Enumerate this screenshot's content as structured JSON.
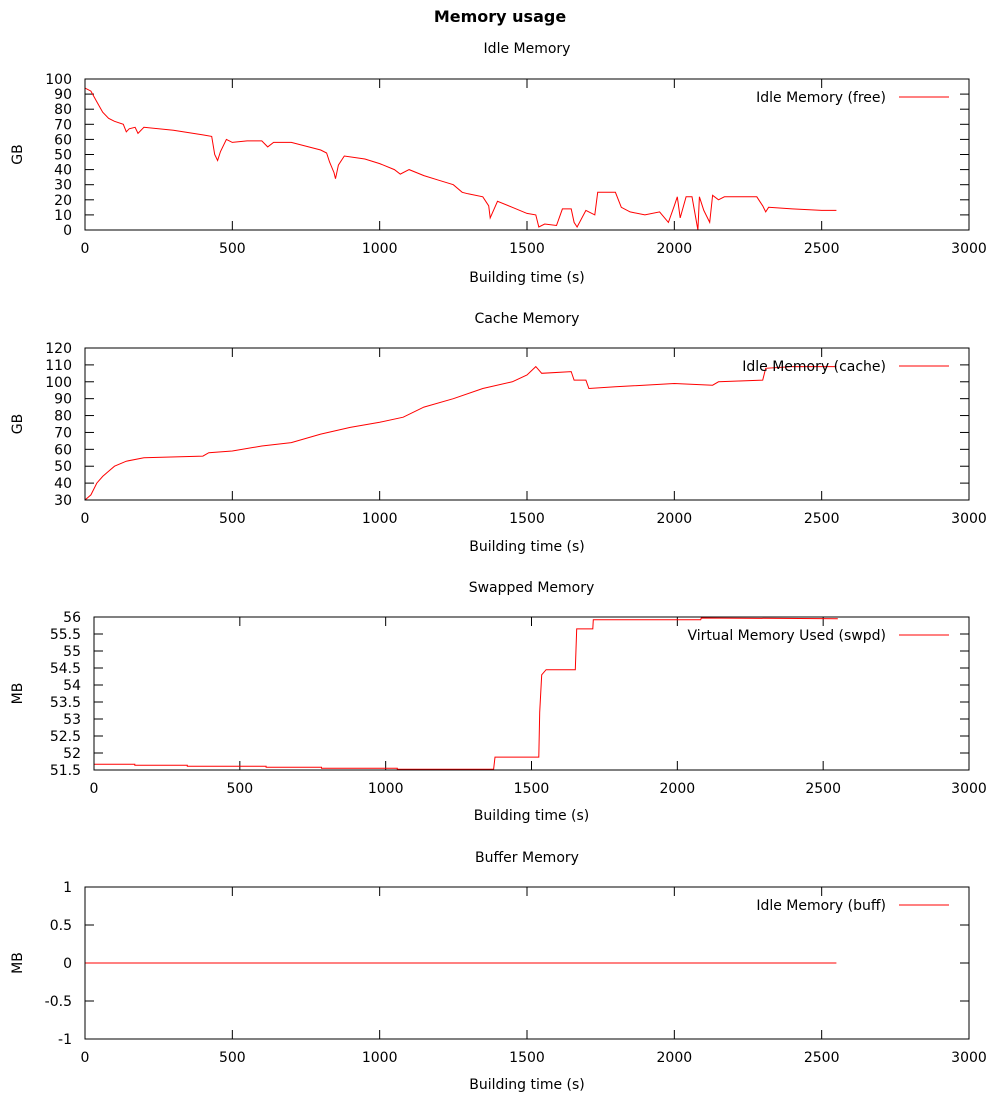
{
  "chart_data": {
    "title": "Memory usage",
    "charts": [
      {
        "type": "line",
        "title": "Idle Memory",
        "xlabel": "Building time (s)",
        "ylabel": "GB",
        "xlim": [
          0,
          3000
        ],
        "ylim": [
          0,
          100
        ],
        "xticks": [
          0,
          500,
          1000,
          1500,
          2000,
          2500,
          3000
        ],
        "yticks": [
          0,
          10,
          20,
          30,
          40,
          50,
          60,
          70,
          80,
          90,
          100
        ],
        "legend": "top-right",
        "series": [
          {
            "name": "Idle Memory (free)",
            "color": "#ff0000",
            "x": [
              0,
              20,
              40,
              60,
              80,
              100,
              130,
              140,
              150,
              170,
              180,
              200,
              300,
              400,
              430,
              440,
              450,
              460,
              480,
              500,
              550,
              600,
              620,
              640,
              700,
              800,
              820,
              830,
              845,
              850,
              860,
              880,
              950,
              1000,
              1050,
              1070,
              1100,
              1150,
              1200,
              1250,
              1280,
              1300,
              1350,
              1370,
              1375,
              1400,
              1450,
              1500,
              1530,
              1540,
              1560,
              1600,
              1620,
              1650,
              1660,
              1670,
              1700,
              1730,
              1740,
              1800,
              1820,
              1850,
              1900,
              1950,
              1980,
              2000,
              2010,
              2020,
              2040,
              2060,
              2080,
              2085,
              2100,
              2120,
              2130,
              2150,
              2170,
              2280,
              2300,
              2310,
              2320,
              2400,
              2500,
              2550
            ],
            "y": [
              94,
              92,
              85,
              78,
              74,
              72,
              70,
              65,
              67,
              68,
              64,
              68,
              66,
              63,
              62,
              50,
              46,
              52,
              60,
              58,
              59,
              59,
              55,
              58,
              58,
              53,
              51,
              45,
              38,
              34,
              43,
              49,
              47,
              44,
              40,
              37,
              40,
              36,
              33,
              30,
              25,
              24,
              22,
              16,
              8,
              19,
              15,
              11,
              10,
              2,
              4,
              3,
              14,
              14,
              5,
              2,
              13,
              10,
              25,
              25,
              15,
              12,
              10,
              12,
              5,
              16,
              22,
              8,
              22,
              22,
              0,
              22,
              13,
              5,
              23,
              20,
              22,
              22,
              16,
              12,
              15,
              14,
              13,
              13
            ]
          }
        ]
      },
      {
        "type": "line",
        "title": "Cache Memory",
        "xlabel": "Building time (s)",
        "ylabel": "GB",
        "xlim": [
          0,
          3000
        ],
        "ylim": [
          30,
          120
        ],
        "xticks": [
          0,
          500,
          1000,
          1500,
          2000,
          2500,
          3000
        ],
        "yticks": [
          30,
          40,
          50,
          60,
          70,
          80,
          90,
          100,
          110,
          120
        ],
        "legend": "top-right",
        "series": [
          {
            "name": "Idle Memory (cache)",
            "color": "#ff0000",
            "x": [
              0,
              20,
              40,
              60,
              80,
              100,
              140,
              200,
              400,
              420,
              500,
              600,
              700,
              800,
              900,
              1000,
              1080,
              1150,
              1250,
              1350,
              1450,
              1500,
              1530,
              1550,
              1650,
              1660,
              1700,
              1710,
              1800,
              2000,
              2130,
              2150,
              2300,
              2310,
              2400,
              2550
            ],
            "y": [
              30,
              33,
              40,
              44,
              47,
              50,
              53,
              55,
              56,
              58,
              59,
              62,
              64,
              69,
              73,
              76,
              79,
              85,
              90,
              96,
              100,
              104,
              109,
              105,
              106,
              101,
              101,
              96,
              97,
              99,
              98,
              100,
              101,
              108,
              109,
              109
            ]
          }
        ]
      },
      {
        "type": "line",
        "title": "Swapped Memory",
        "xlabel": "Building time (s)",
        "ylabel": "MB",
        "xlim": [
          0,
          3000
        ],
        "ylim": [
          51.5,
          56
        ],
        "xticks": [
          0,
          500,
          1000,
          1500,
          2000,
          2500,
          3000
        ],
        "yticks": [
          51.5,
          52,
          52.5,
          53,
          53.5,
          54,
          54.5,
          55,
          55.5,
          56
        ],
        "legend": "top-right",
        "series": [
          {
            "name": "Virtual Memory Used (swpd)",
            "color": "#ff0000",
            "x": [
              0,
              140,
              140,
              320,
              320,
              590,
              590,
              780,
              780,
              1040,
              1040,
              1370,
              1375,
              1525,
              1528,
              1535,
              1550,
              1650,
              1655,
              1710,
              1712,
              2080,
              2082,
              2550
            ],
            "y": [
              51.67,
              51.67,
              51.64,
              51.64,
              51.61,
              51.61,
              51.58,
              51.58,
              51.55,
              51.55,
              51.52,
              51.52,
              51.88,
              51.88,
              53.2,
              54.3,
              54.45,
              54.45,
              55.65,
              55.65,
              55.92,
              55.92,
              55.97,
              55.95
            ]
          }
        ]
      },
      {
        "type": "line",
        "title": "Buffer Memory",
        "xlabel": "Building time (s)",
        "ylabel": "MB",
        "xlim": [
          0,
          3000
        ],
        "ylim": [
          -1,
          1
        ],
        "xticks": [
          0,
          500,
          1000,
          1500,
          2000,
          2500,
          3000
        ],
        "yticks": [
          -1,
          -0.5,
          0,
          0.5,
          1
        ],
        "legend": "top-right",
        "series": [
          {
            "name": "Idle Memory (buff)",
            "color": "#ff0000",
            "x": [
              0,
              2550
            ],
            "y": [
              0,
              0
            ]
          }
        ]
      }
    ]
  }
}
